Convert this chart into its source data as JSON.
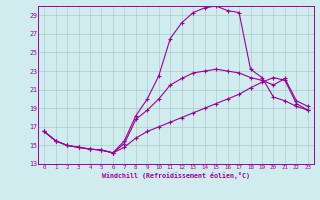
{
  "xlabel": "Windchill (Refroidissement éolien,°C)",
  "background_color": "#d0ecee",
  "line_color": "#990099",
  "grid_color": "#aacccc",
  "xlim": [
    -0.5,
    23.5
  ],
  "ylim": [
    13,
    30
  ],
  "yticks": [
    13,
    15,
    17,
    19,
    21,
    23,
    25,
    27,
    29
  ],
  "xticks": [
    0,
    1,
    2,
    3,
    4,
    5,
    6,
    7,
    8,
    9,
    10,
    11,
    12,
    13,
    14,
    15,
    16,
    17,
    18,
    19,
    20,
    21,
    22,
    23
  ],
  "series1": [
    16.5,
    15.5,
    15.0,
    14.8,
    14.6,
    14.5,
    14.2,
    15.5,
    18.2,
    20.0,
    22.5,
    26.5,
    28.2,
    29.3,
    29.8,
    30.0,
    29.5,
    29.3,
    23.2,
    22.3,
    20.2,
    19.8,
    19.2,
    18.8
  ],
  "series2": [
    16.5,
    15.5,
    15.0,
    14.8,
    14.6,
    14.5,
    14.2,
    15.2,
    17.8,
    18.8,
    20.0,
    21.5,
    22.2,
    22.8,
    23.0,
    23.2,
    23.0,
    22.8,
    22.3,
    22.0,
    21.5,
    22.2,
    19.8,
    19.2
  ],
  "series3": [
    16.5,
    15.5,
    15.0,
    14.8,
    14.6,
    14.5,
    14.2,
    14.8,
    15.8,
    16.5,
    17.0,
    17.5,
    18.0,
    18.5,
    19.0,
    19.5,
    20.0,
    20.5,
    21.2,
    21.8,
    22.3,
    22.0,
    19.5,
    18.8
  ]
}
